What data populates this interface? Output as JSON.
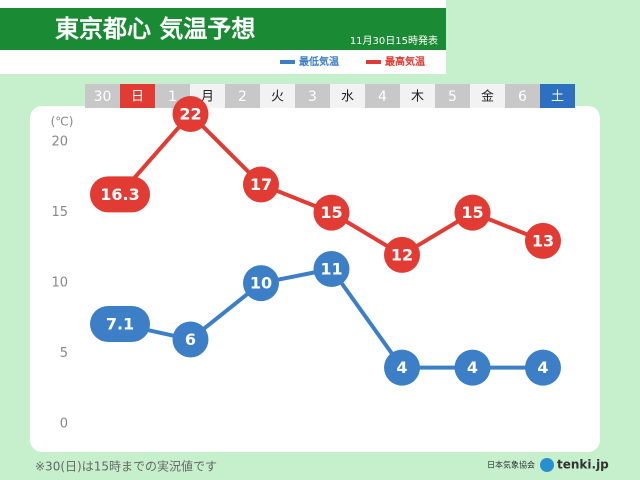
{
  "chart_data": {
    "type": "line",
    "title": "東京都心 気温予想",
    "subtitle": "11月30日15時発表",
    "categories": [
      "30",
      "1",
      "2",
      "3",
      "4",
      "5",
      "6"
    ],
    "weekdays": [
      "日",
      "月",
      "火",
      "水",
      "木",
      "金",
      "土"
    ],
    "series": [
      {
        "name": "最低気温",
        "color": "#3d7fc6",
        "values": [
          7.1,
          6,
          10,
          11,
          4,
          4,
          4
        ]
      },
      {
        "name": "最高気温",
        "color": "#e13b33",
        "values": [
          16.3,
          22,
          17,
          15,
          12,
          15,
          13
        ]
      }
    ],
    "y_label": "(℃)",
    "ylim": [
      0,
      22
    ],
    "yticks": [
      0,
      5,
      10,
      15,
      20
    ],
    "grid": false,
    "note": "※30(日)は15時までの実況値です",
    "source": "日本気象協会",
    "brand": "tenki.jp"
  }
}
